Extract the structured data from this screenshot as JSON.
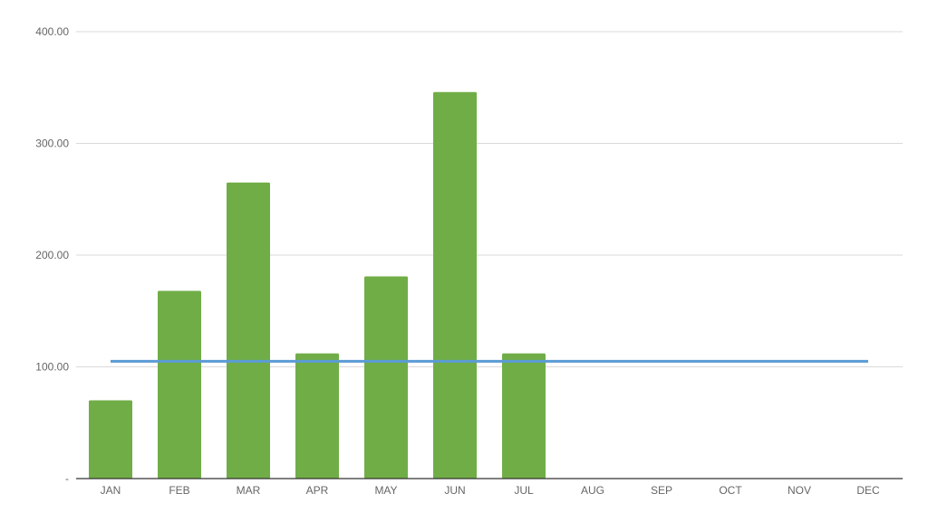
{
  "chart_data": {
    "type": "bar",
    "title": "",
    "xlabel": "",
    "ylabel": "",
    "categories": [
      "JAN",
      "FEB",
      "MAR",
      "APR",
      "MAY",
      "JUN",
      "JUL",
      "AUG",
      "SEP",
      "OCT",
      "NOV",
      "DEC"
    ],
    "series": [
      {
        "type": "bar",
        "color": "#70ad47",
        "values": [
          70,
          168,
          265,
          112,
          181,
          346,
          112,
          0,
          0,
          0,
          0,
          0
        ]
      },
      {
        "type": "line",
        "color": "#5b9bd5",
        "values": [
          105,
          105,
          105,
          105,
          105,
          105,
          105,
          105,
          105,
          105,
          105,
          105
        ]
      }
    ],
    "ylim": [
      0,
      400
    ],
    "yticks": [
      {
        "value": 0,
        "label": "-"
      },
      {
        "value": 100,
        "label": "100.00"
      },
      {
        "value": 200,
        "label": "200.00"
      },
      {
        "value": 300,
        "label": "300.00"
      },
      {
        "value": 400,
        "label": "400.00"
      }
    ],
    "grid": true,
    "legend": "none"
  }
}
